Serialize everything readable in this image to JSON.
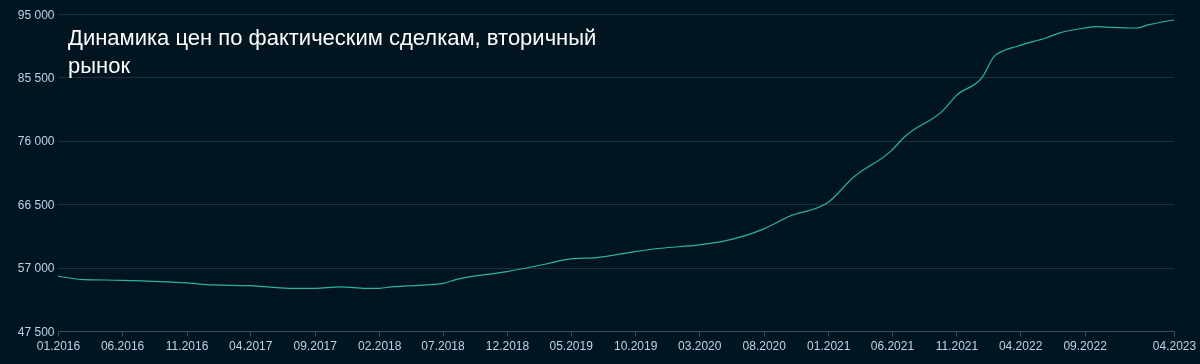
{
  "chart_data": {
    "type": "line",
    "title": "Динамика цен по фактическим сделкам, вторичный рынок",
    "x": [
      "2016-01",
      "2016-03",
      "2016-06",
      "2016-09",
      "2016-11",
      "2017-01",
      "2017-04",
      "2017-07",
      "2017-09",
      "2017-11",
      "2018-01",
      "2018-02",
      "2018-03",
      "2018-07",
      "2018-08",
      "2018-12",
      "2019-03",
      "2019-05",
      "2019-07",
      "2019-10",
      "2019-12",
      "2020-03",
      "2020-05",
      "2020-08",
      "2020-10",
      "2021-01",
      "2021-03",
      "2021-06",
      "2021-07",
      "2021-10",
      "2021-11",
      "2022-01",
      "2022-02",
      "2022-04",
      "2022-06",
      "2022-07",
      "2022-09",
      "2022-10",
      "2022-11",
      "2023-01",
      "2023-02",
      "2023-04"
    ],
    "series": [
      {
        "color": "#2bb596",
        "values": [
          55700,
          55200,
          55100,
          54900,
          54700,
          54400,
          54300,
          53900,
          53900,
          54100,
          53900,
          53900,
          54100,
          54600,
          55200,
          56400,
          57500,
          58300,
          58500,
          59400,
          59900,
          60400,
          61000,
          62800,
          64700,
          66800,
          70500,
          74600,
          76600,
          80600,
          82800,
          85500,
          88800,
          90300,
          91400,
          92100,
          92900,
          93100,
          93000,
          92900,
          93400,
          94100
        ]
      }
    ],
    "xlim": [
      "2016-01",
      "2023-04"
    ],
    "xticks": [
      {
        "value": "2016-01",
        "label": "01.2016"
      },
      {
        "value": "2016-06",
        "label": "06.2016"
      },
      {
        "value": "2016-11",
        "label": "11.2016"
      },
      {
        "value": "2017-04",
        "label": "04.2017"
      },
      {
        "value": "2017-09",
        "label": "09.2017"
      },
      {
        "value": "2018-02",
        "label": "02.2018"
      },
      {
        "value": "2018-07",
        "label": "07.2018"
      },
      {
        "value": "2018-12",
        "label": "12.2018"
      },
      {
        "value": "2019-05",
        "label": "05.2019"
      },
      {
        "value": "2019-10",
        "label": "10.2019"
      },
      {
        "value": "2020-03",
        "label": "03.2020"
      },
      {
        "value": "2020-08",
        "label": "08.2020"
      },
      {
        "value": "2021-01",
        "label": "01.2021"
      },
      {
        "value": "2021-06",
        "label": "06.2021"
      },
      {
        "value": "2021-11",
        "label": "11.2021"
      },
      {
        "value": "2022-04",
        "label": "04.2022"
      },
      {
        "value": "2022-09",
        "label": "09.2022"
      },
      {
        "value": "2023-04",
        "label": "04.2023"
      }
    ],
    "ylim": [
      47500,
      95000
    ],
    "yticks": [
      {
        "value": 47500,
        "label": "47 500"
      },
      {
        "value": 57000,
        "label": "57 000"
      },
      {
        "value": 66500,
        "label": "66 500"
      },
      {
        "value": 76000,
        "label": "76 000"
      },
      {
        "value": 85500,
        "label": "85 500"
      },
      {
        "value": 95000,
        "label": "95 000"
      }
    ],
    "grid": "y",
    "legend": false,
    "marker": "none",
    "line_style": "solid"
  }
}
